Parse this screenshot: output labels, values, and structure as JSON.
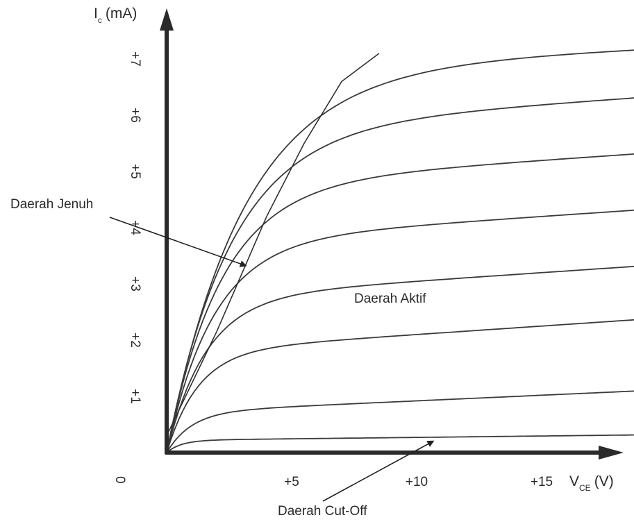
{
  "chart_data": {
    "type": "line",
    "title": "",
    "ylabel": {
      "main": "I",
      "sub": "c",
      "unit": "(mA)"
    },
    "xlabel": {
      "main": "V",
      "sub": "CE",
      "unit": "(V)"
    },
    "origin_label": "0",
    "xlim": [
      0,
      19
    ],
    "ylim": [
      0,
      7.7
    ],
    "x_ticks": [
      {
        "value": 5,
        "label": "+5"
      },
      {
        "value": 10,
        "label": "+10"
      },
      {
        "value": 15,
        "label": "+15"
      }
    ],
    "y_ticks": [
      {
        "value": 1,
        "label": "+1"
      },
      {
        "value": 2,
        "label": "+2"
      },
      {
        "value": 3,
        "label": "+3"
      },
      {
        "value": 4,
        "label": "+4"
      },
      {
        "value": 5,
        "label": "+5"
      },
      {
        "value": 6,
        "label": "+6"
      },
      {
        "value": 7,
        "label": "+7"
      }
    ],
    "x_max_curve": 19.3,
    "series": [
      {
        "knee": 1.5,
        "level": 0.22,
        "slope": 0.005
      },
      {
        "knee": 2.5,
        "level": 0.72,
        "slope": 0.02
      },
      {
        "knee": 3.2,
        "level": 1.8,
        "slope": 0.03
      },
      {
        "knee": 4.0,
        "level": 2.75,
        "slope": 0.03
      },
      {
        "knee": 4.8,
        "level": 3.75,
        "slope": 0.03
      },
      {
        "knee": 5.6,
        "level": 4.75,
        "slope": 0.03
      },
      {
        "knee": 6.6,
        "level": 5.75,
        "slope": 0.03
      },
      {
        "knee": 8.0,
        "level": 6.8,
        "slope": 0.02
      }
    ],
    "saturation_line": [
      [
        0,
        0.3
      ],
      [
        2,
        2.15
      ],
      [
        4,
        4.2
      ],
      [
        5.5,
        5.5
      ],
      [
        7,
        6.6
      ],
      [
        8.5,
        7.1
      ]
    ],
    "annotations": {
      "saturation": {
        "text": "Daerah Jenuh",
        "target": [
          3.3,
          3.3
        ]
      },
      "active": {
        "text": "Daerah Aktif"
      },
      "cutoff": {
        "text": "Daerah Cut-Off",
        "target": [
          10.6,
          0.25
        ]
      }
    }
  }
}
